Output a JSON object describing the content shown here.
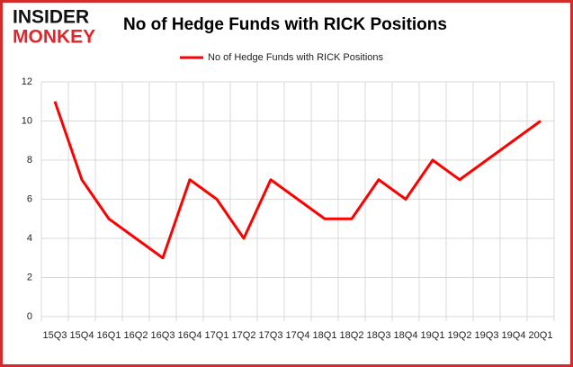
{
  "logo": {
    "top": "INSIDER",
    "bottom": "MONKEY"
  },
  "chart_data": {
    "type": "line",
    "title": "No of Hedge Funds with RICK Positions",
    "categories": [
      "15Q3",
      "15Q4",
      "16Q1",
      "16Q2",
      "16Q3",
      "16Q4",
      "17Q1",
      "17Q2",
      "17Q3",
      "17Q4",
      "18Q1",
      "18Q2",
      "18Q3",
      "18Q4",
      "19Q1",
      "19Q2",
      "19Q3",
      "19Q4",
      "20Q1"
    ],
    "series": [
      {
        "name": "No of Hedge Funds with RICK Positions",
        "color": "#ff0000",
        "values": [
          11,
          7,
          5,
          4,
          3,
          7,
          6,
          4,
          7,
          6,
          5,
          5,
          7,
          6,
          8,
          7,
          8,
          9,
          10
        ]
      }
    ],
    "ylim": [
      0,
      12
    ],
    "yticks": [
      0,
      2,
      4,
      6,
      8,
      10,
      12
    ],
    "grid": true,
    "legend": "top"
  }
}
